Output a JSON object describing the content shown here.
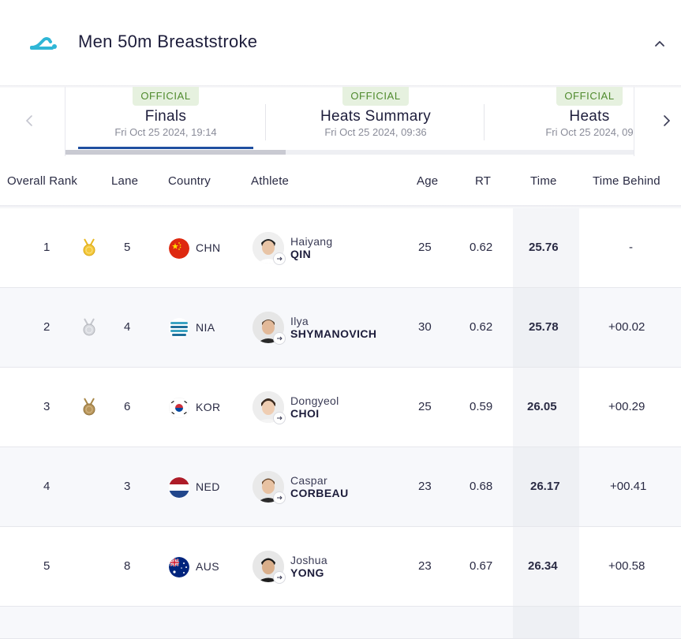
{
  "header": {
    "title": "Men 50m Breaststroke",
    "logo_icon": "swimming-icon",
    "collapse_icon": "chevron-up-icon"
  },
  "tabs": [
    {
      "badge": "OFFICIAL",
      "label": "Finals",
      "date": "Fri Oct 25 2024, 19:14",
      "active": true
    },
    {
      "badge": "OFFICIAL",
      "label": "Heats Summary",
      "date": "Fri Oct 25 2024, 09:36",
      "active": false
    },
    {
      "badge": "OFFICIAL",
      "label": "Heats",
      "date": "Fri Oct 25 2024, 09",
      "active": false
    }
  ],
  "columns": {
    "rank": "Overall Rank",
    "lane": "Lane",
    "country": "Country",
    "athlete": "Athlete",
    "age": "Age",
    "rt": "RT",
    "time": "Time",
    "behind": "Time Behind"
  },
  "results": [
    {
      "rank": "1",
      "medal": "gold",
      "lane": "5",
      "country": "CHN",
      "first": "Haiyang",
      "last": "QIN",
      "age": "25",
      "rt": "0.62",
      "time": "25.76",
      "behind": "-"
    },
    {
      "rank": "2",
      "medal": "silver",
      "lane": "4",
      "country": "NIA",
      "first": "Ilya",
      "last": "SHYMANOVICH",
      "age": "30",
      "rt": "0.62",
      "time": "25.78",
      "behind": "+00.02"
    },
    {
      "rank": "3",
      "medal": "bronze",
      "lane": "6",
      "country": "KOR",
      "first": "Dongyeol",
      "last": "CHOI",
      "age": "25",
      "rt": "0.59",
      "time": "26.05",
      "behind": "+00.29"
    },
    {
      "rank": "4",
      "medal": "",
      "lane": "3",
      "country": "NED",
      "first": "Caspar",
      "last": "CORBEAU",
      "age": "23",
      "rt": "0.68",
      "time": "26.17",
      "behind": "+00.41"
    },
    {
      "rank": "5",
      "medal": "",
      "lane": "8",
      "country": "AUS",
      "first": "Joshua",
      "last": "YONG",
      "age": "23",
      "rt": "0.67",
      "time": "26.34",
      "behind": "+00.58"
    }
  ],
  "colors": {
    "accent": "#1f4fa0",
    "official_bg": "#e6f1df",
    "official_text": "#4f8a2d",
    "gold": "#e8b923",
    "silver": "#c4c6cc",
    "bronze": "#a88849"
  }
}
